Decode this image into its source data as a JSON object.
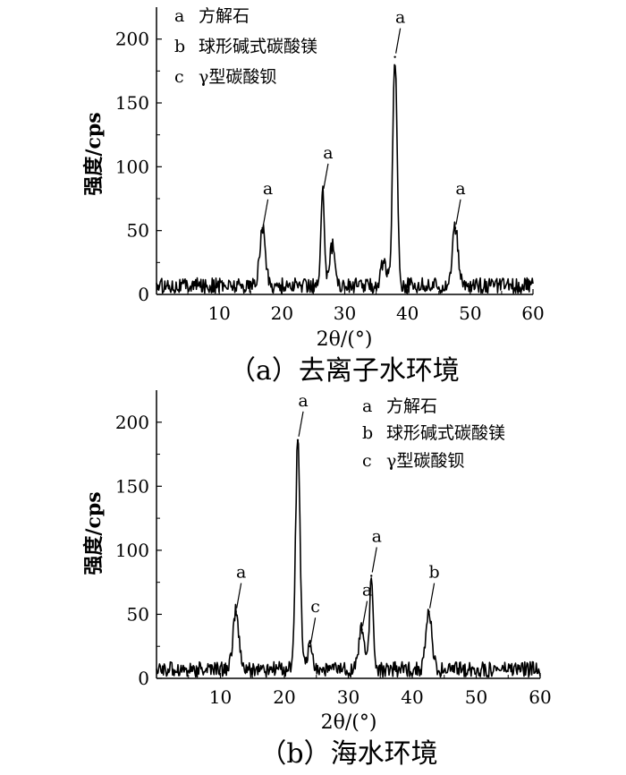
{
  "chart_data": [
    {
      "type": "line",
      "xlabel": "2θ/(°)",
      "ylabel": "强度/cps",
      "caption": "（a）去离子水环境",
      "xlim": [
        0,
        60
      ],
      "ylim": [
        0,
        225
      ],
      "xticks": [
        10,
        20,
        30,
        40,
        50,
        60
      ],
      "yticks": [
        0,
        50,
        100,
        150,
        200
      ],
      "baseline_noise": 6,
      "legend": [
        {
          "key": "a",
          "label": "方解石"
        },
        {
          "key": "b",
          "label": "球形碱式碳酸镁"
        },
        {
          "key": "c",
          "label": "γ型碳酸钡"
        }
      ],
      "legend_position": "top-left",
      "peaks": [
        {
          "x": 16.9,
          "y": 52,
          "label": "a"
        },
        {
          "x": 26.5,
          "y": 80,
          "label": "a"
        },
        {
          "x": 28.0,
          "y": 38,
          "label": ""
        },
        {
          "x": 36.2,
          "y": 26,
          "label": ""
        },
        {
          "x": 38.0,
          "y": 186,
          "label": "a"
        },
        {
          "x": 47.6,
          "y": 52,
          "label": "a"
        }
      ]
    },
    {
      "type": "line",
      "xlabel": "2θ/(°)",
      "ylabel": "强度/cps",
      "caption": "（b）海水环境",
      "xlim": [
        0,
        60
      ],
      "ylim": [
        0,
        225
      ],
      "xticks": [
        10,
        20,
        30,
        40,
        50,
        60
      ],
      "yticks": [
        0,
        50,
        100,
        150,
        200
      ],
      "baseline_noise": 6,
      "legend": [
        {
          "key": "a",
          "label": "方解石"
        },
        {
          "key": "b",
          "label": "球形碱式碳酸镁"
        },
        {
          "key": "c",
          "label": "γ型碳酸钡"
        }
      ],
      "legend_position": "top-right",
      "peaks": [
        {
          "x": 12.4,
          "y": 52,
          "label": "a"
        },
        {
          "x": 22.1,
          "y": 186,
          "label": "a"
        },
        {
          "x": 24.0,
          "y": 25,
          "label": "c"
        },
        {
          "x": 32.1,
          "y": 38,
          "label": "a"
        },
        {
          "x": 33.6,
          "y": 80,
          "label": "a"
        },
        {
          "x": 42.6,
          "y": 52,
          "label": "b"
        }
      ]
    }
  ]
}
